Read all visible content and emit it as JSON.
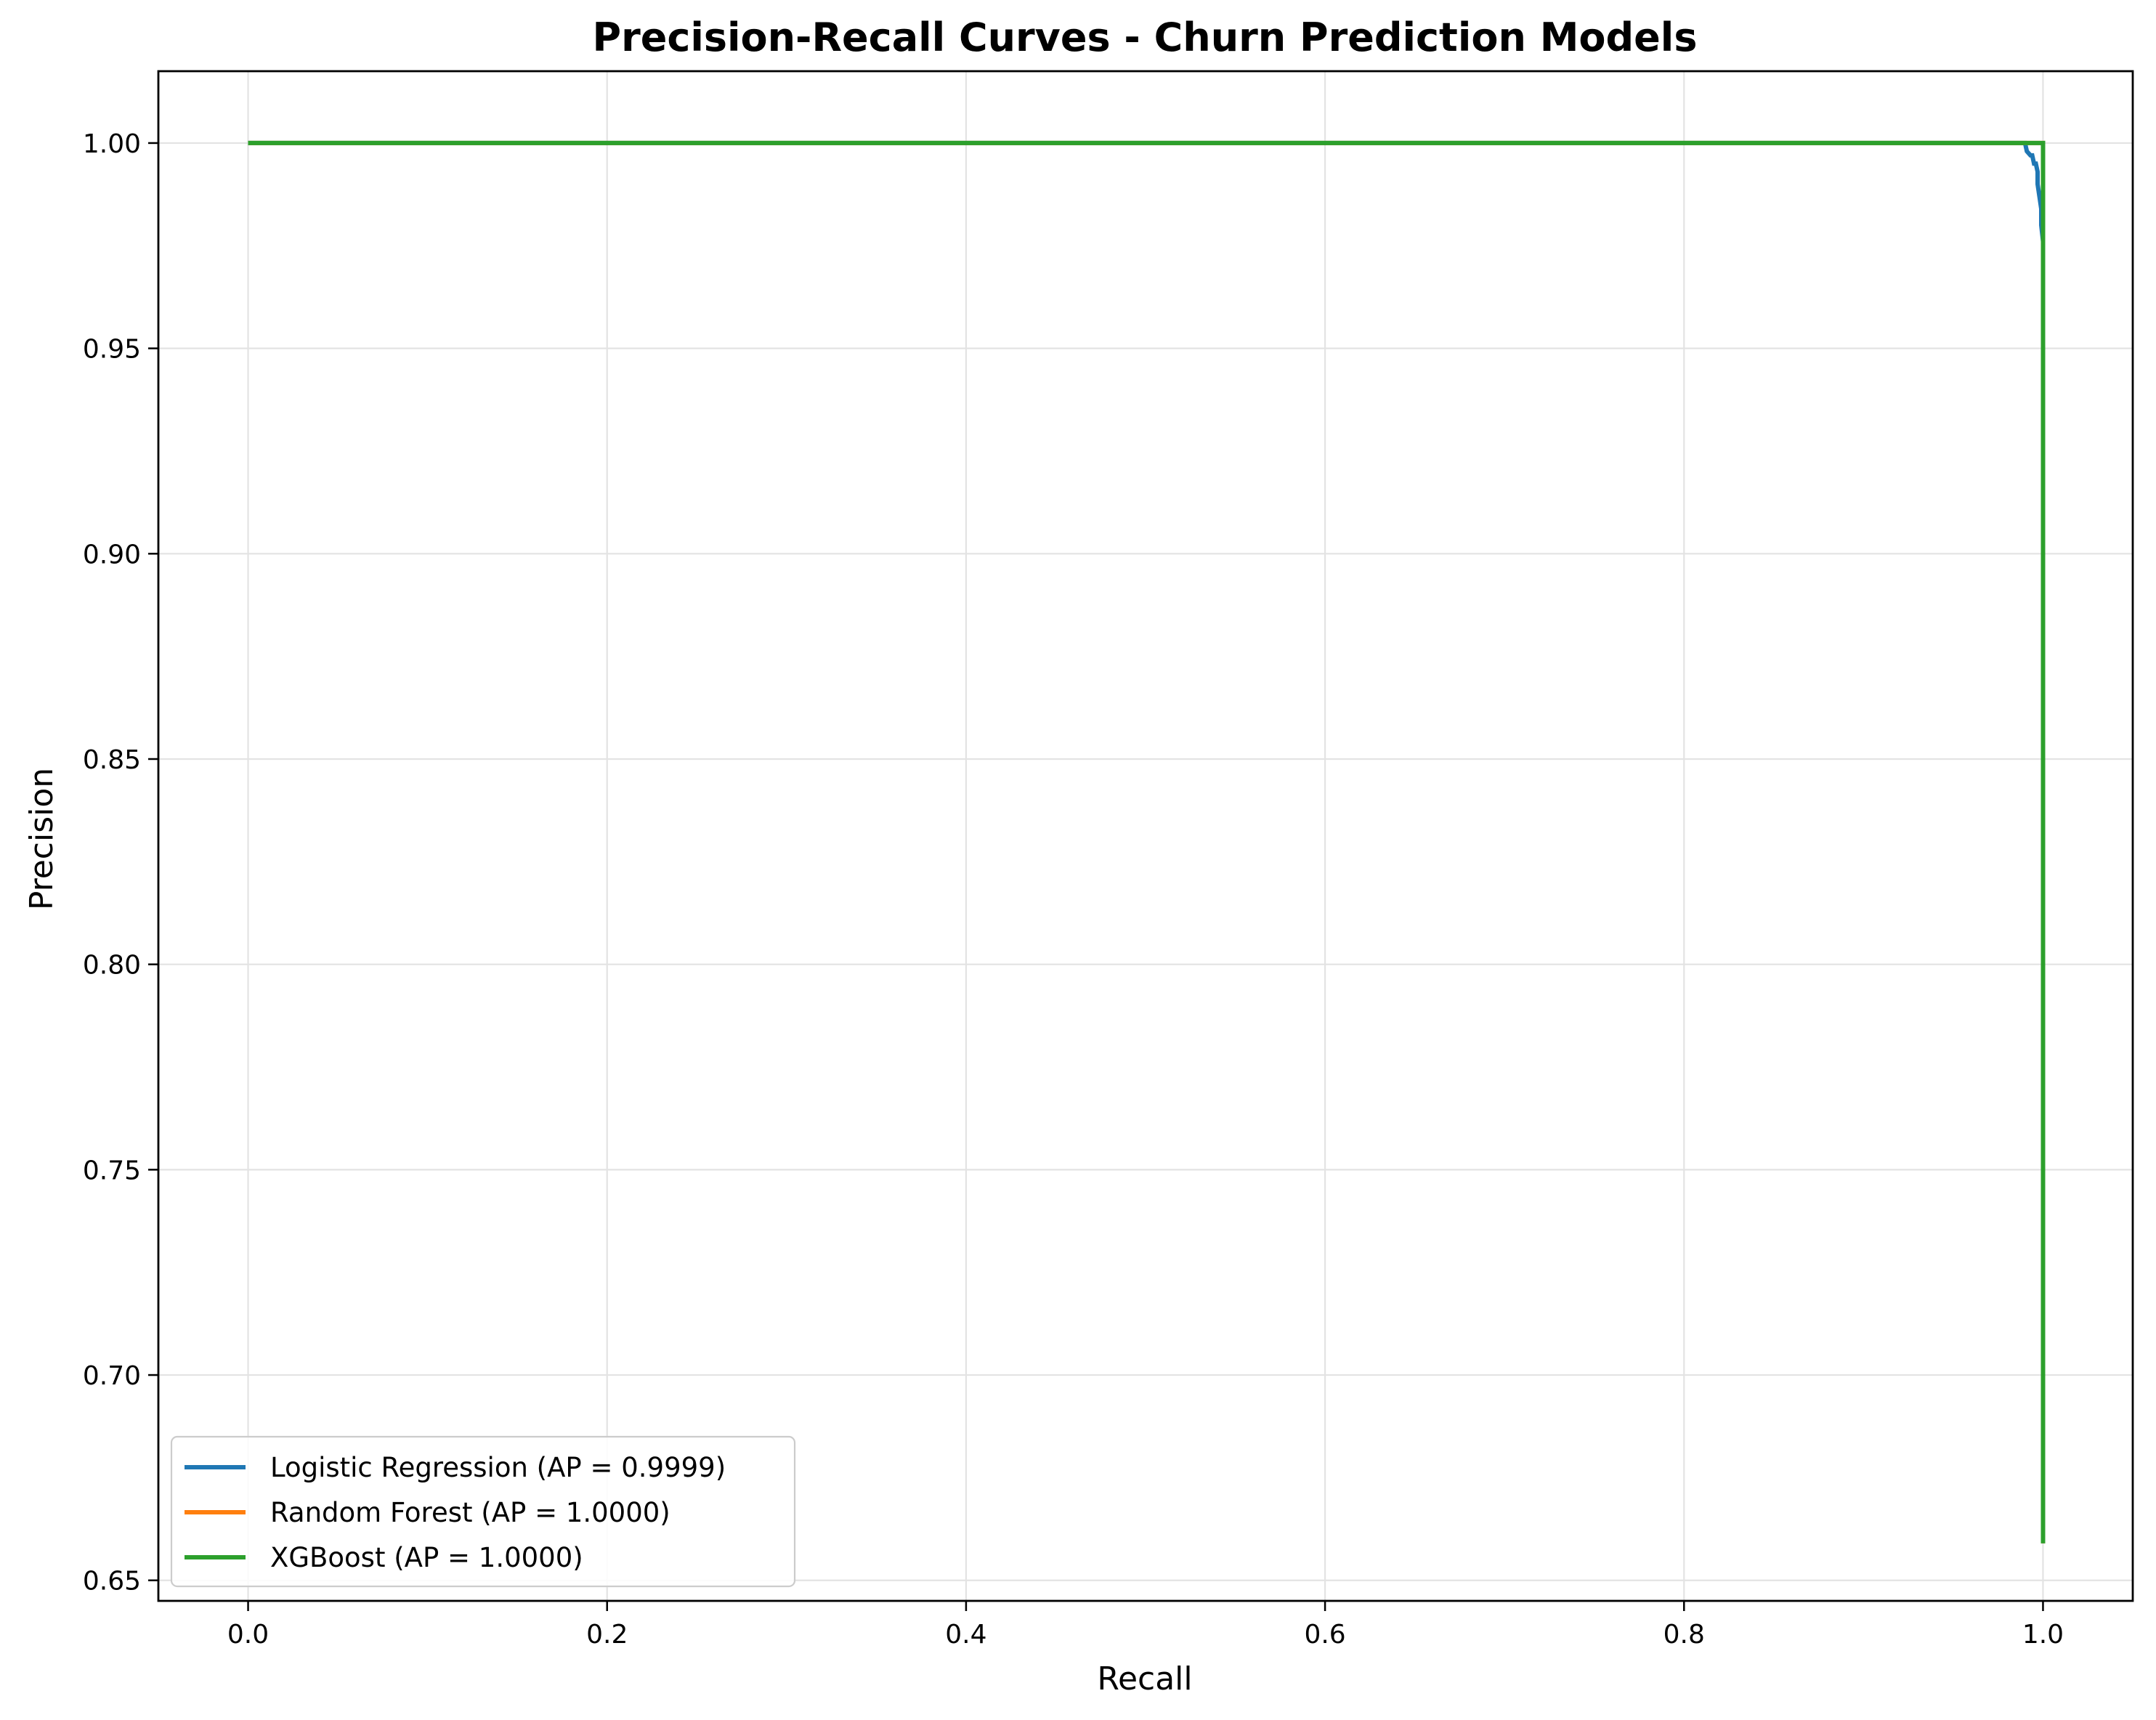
{
  "chart_data": {
    "type": "line",
    "title": "Precision-Recall Curves - Churn Prediction Models",
    "xlabel": "Recall",
    "ylabel": "Precision",
    "xlim": [
      -0.05,
      1.05
    ],
    "ylim": [
      0.645,
      1.0175
    ],
    "xticks": [
      0.0,
      0.2,
      0.4,
      0.6,
      0.8,
      1.0
    ],
    "xtick_labels": [
      "0.0",
      "0.2",
      "0.4",
      "0.6",
      "0.8",
      "1.0"
    ],
    "yticks": [
      0.65,
      0.7,
      0.75,
      0.8,
      0.85,
      0.9,
      0.95,
      1.0
    ],
    "ytick_labels": [
      "0.65",
      "0.70",
      "0.75",
      "0.80",
      "0.85",
      "0.90",
      "0.95",
      "1.00"
    ],
    "grid": true,
    "legend_position": "lower-left",
    "series": [
      {
        "name": "Logistic Regression (AP = 0.9999)",
        "color": "#1f77b4",
        "x": [
          0.0,
          0.99,
          0.991,
          0.993,
          0.994,
          0.995,
          0.996,
          0.997,
          0.997,
          0.998,
          0.999,
          0.999,
          1.0,
          1.0
        ],
        "y": [
          1.0,
          1.0,
          0.998,
          0.997,
          0.997,
          0.995,
          0.995,
          0.993,
          0.99,
          0.987,
          0.984,
          0.98,
          0.976,
          0.659
        ]
      },
      {
        "name": "Random Forest (AP = 1.0000)",
        "color": "#ff7f0e",
        "x": [
          0.0,
          1.0,
          1.0
        ],
        "y": [
          1.0,
          1.0,
          0.659
        ]
      },
      {
        "name": "XGBoost (AP = 1.0000)",
        "color": "#2ca02c",
        "x": [
          0.0,
          1.0,
          1.0
        ],
        "y": [
          1.0,
          1.0,
          0.659
        ]
      }
    ]
  }
}
